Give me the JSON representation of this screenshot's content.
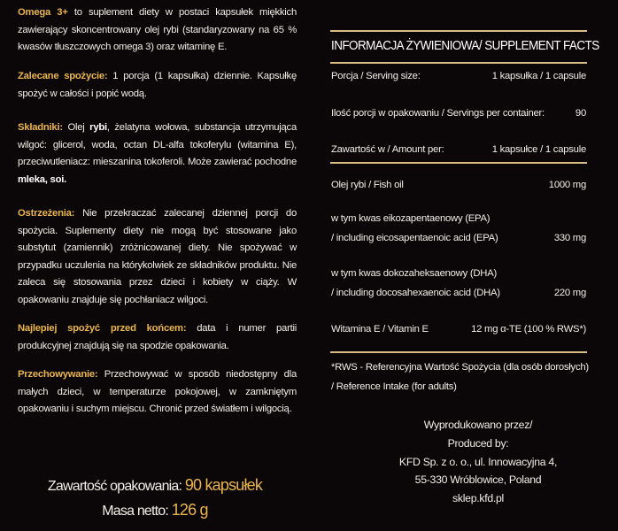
{
  "left": {
    "intro": {
      "heading": "Omega 3+",
      "text": " to suplement diety w postaci kapsułek miękkich zawierający skoncentrowany olej rybi (standaryzowany na 65 % kwasów  tłuszczowych omega 3) oraz witaminę E."
    },
    "usage": {
      "heading": "Zalecane spożycie:",
      "text": " 1 porcja (1 kapsułka) dziennie. Kapsułkę spożyć w całości i popić wodą."
    },
    "ingredients": {
      "heading": "Składniki:",
      "t1": " Olej ",
      "b1": "rybi",
      "t2": ", żelatyna wołowa, substancja utrzymująca wilgoć: glicerol, woda, octan DL-alfa tokoferylu (witamina E), przeciwutleniacz: mieszanina tokoferoli. Może zawierać pochodne ",
      "b2": "mleka, soi."
    },
    "warnings": {
      "heading": "Ostrzeżenia:",
      "text": " Nie przekraczać zalecanej dziennej porcji do spożycia. Suplementy diety nie mogą być stosowane jako substytut (zamiennik) zróżnicowanej diety. Nie spożywać w przypadku uczulenia na którykolwiek ze składników produktu. Nie zaleca się stosowania przez dzieci i kobiety w ciąży.  W opakowaniu znajduje się pochłaniacz wilgoci."
    },
    "best_before": {
      "heading": "Najlepiej spożyć przed końcem:",
      "text": " data i numer partii produkcyjnej znajdują się na spodzie opakowania."
    },
    "storage": {
      "heading": "Przechowywanie:",
      "text": " Przechowywać w sposób niedostępny dla małych dzieci, w temperaturze pokojowej, w zamkniętym opakowaniu i suchym miejscu. Chronić przed światłem i wilgocią."
    },
    "contents_label": "Zawartość opakowania: ",
    "contents_value": "90 kapsułek",
    "net_label": "Masa netto: ",
    "net_value": "126 g"
  },
  "facts": {
    "title": "INFORMACJA ŻYWIENIOWA/ SUPPLEMENT FACTS",
    "rows": [
      {
        "label": "Porcja / Serving size:",
        "value": "1 kapsułka / 1 capsule"
      },
      {
        "label": "Ilość porcji w opakowaniu / Servings per container:",
        "value": "90"
      },
      {
        "label": "Zawartość w / Amount per:",
        "value": "1 kapsułce / 1 capsule"
      },
      {
        "label": "Olej rybi / Fish oil",
        "value": "1000 mg"
      },
      {
        "label": "w tym kwas eikozapentaenowy (EPA)",
        "label2": "/ including eicosapentaenoic acid (EPA)",
        "value": "330 mg"
      },
      {
        "label": "w tym kwas dokozaheksaenowy (DHA)",
        "label2": "/ including docosahexaenoic acid (DHA)",
        "value": "220 mg"
      },
      {
        "label": "Witamina E / Vitamin E",
        "value": "12 mg α-TE (100 % RWS*)"
      }
    ],
    "note1": "*RWS - Referencyjna Wartość Spożycia (dla osób dorosłych)",
    "note2": "/ Reference Intake (for adults)"
  },
  "producer": [
    "Wyprodukowano przez/",
    "Produced by:",
    "KFD Sp. z o. o., ul. Innowacyjna 4,",
    "55-330 Wróblowice, Poland",
    "sklep.kfd.pl"
  ],
  "colors": {
    "background": "#0b0607",
    "accent": "#e9b54d",
    "rule": "#d9bd85"
  }
}
